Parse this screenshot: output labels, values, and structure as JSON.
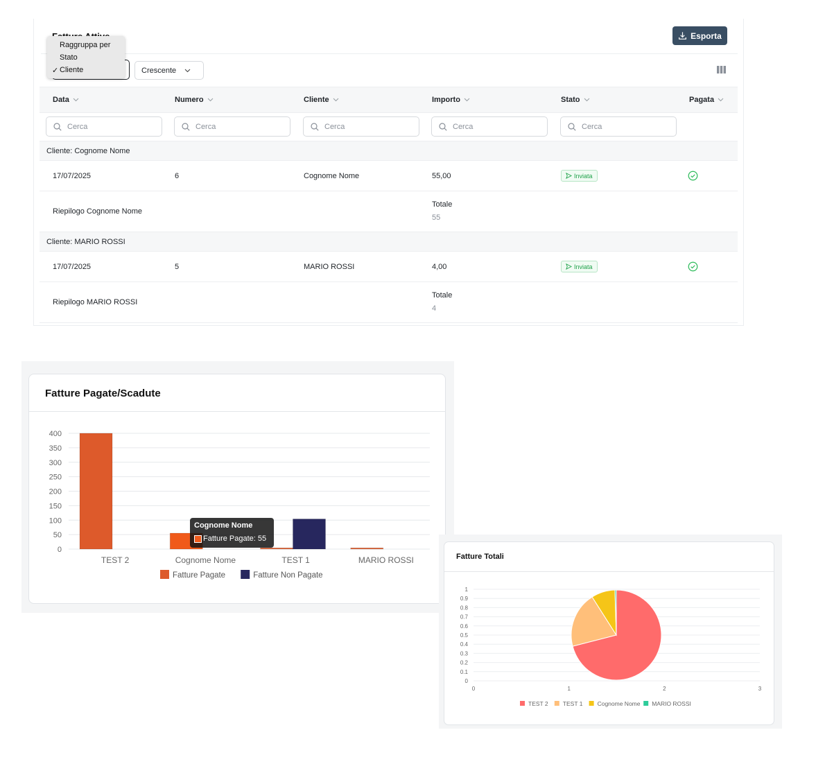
{
  "table": {
    "title": "Fatture Attive",
    "export_label": "Esporta",
    "order_label": "Crescente",
    "dropdown": {
      "header": "Raggruppa per",
      "options": [
        "Stato",
        "Cliente"
      ],
      "selected": "Cliente"
    },
    "columns": [
      "Data",
      "Numero",
      "Cliente",
      "Importo",
      "Stato",
      "Pagata"
    ],
    "search_placeholder": "Cerca",
    "groups": [
      {
        "label": "Cliente: Cognome Nome",
        "row": {
          "data": "17/07/2025",
          "numero": "6",
          "cliente": "Cognome Nome",
          "importo": "55,00",
          "stato": "Inviata"
        },
        "summary": {
          "label": "Riepilogo Cognome Nome",
          "totale_label": "Totale",
          "totale_value": "55"
        }
      },
      {
        "label": "Cliente: MARIO ROSSI",
        "row": {
          "data": "17/07/2025",
          "numero": "5",
          "cliente": "MARIO ROSSI",
          "importo": "4,00",
          "stato": "Inviata"
        },
        "summary": {
          "label": "Riepilogo MARIO ROSSI",
          "totale_label": "Totale",
          "totale_value": "4"
        }
      }
    ]
  },
  "bar_chart": {
    "title": "Fatture Pagate/Scadute",
    "tooltip": {
      "title": "Cognome Nome",
      "line": "Fatture Pagate: 55"
    },
    "chart_data": {
      "type": "bar",
      "categories": [
        "TEST 2",
        "Cognome Nome",
        "TEST 1",
        "MARIO ROSSI"
      ],
      "series": [
        {
          "name": "Fatture Pagate",
          "values": [
            400,
            55,
            4,
            4
          ],
          "color": "#dd5a2b",
          "highlight": "#f05a1a"
        },
        {
          "name": "Fatture Non Pagate",
          "values": [
            0,
            0,
            104,
            0
          ],
          "color": "#27275e"
        }
      ],
      "ylim": [
        0,
        400
      ],
      "yticks": [
        0,
        50,
        100,
        150,
        200,
        250,
        300,
        350,
        400
      ],
      "legend": "bottom",
      "grid": true
    }
  },
  "pie_chart": {
    "title": "Fatture Totali",
    "chart_data": {
      "type": "pie",
      "labels": [
        "TEST 2",
        "TEST 1",
        "Cognome Nome",
        "MARIO ROSSI"
      ],
      "values": [
        71,
        20,
        8.5,
        0.5
      ],
      "colors": [
        "#ff6b6b",
        "#ffbf7a",
        "#f5c518",
        "#2ecc9a"
      ],
      "yticks": [
        "0",
        "0.1",
        "0.2",
        "0.3",
        "0.4",
        "0.5",
        "0.6",
        "0.7",
        "0.8",
        "0.9",
        "1"
      ],
      "xticks": [
        "0",
        "1",
        "2",
        "3"
      ],
      "legend": "bottom"
    }
  }
}
